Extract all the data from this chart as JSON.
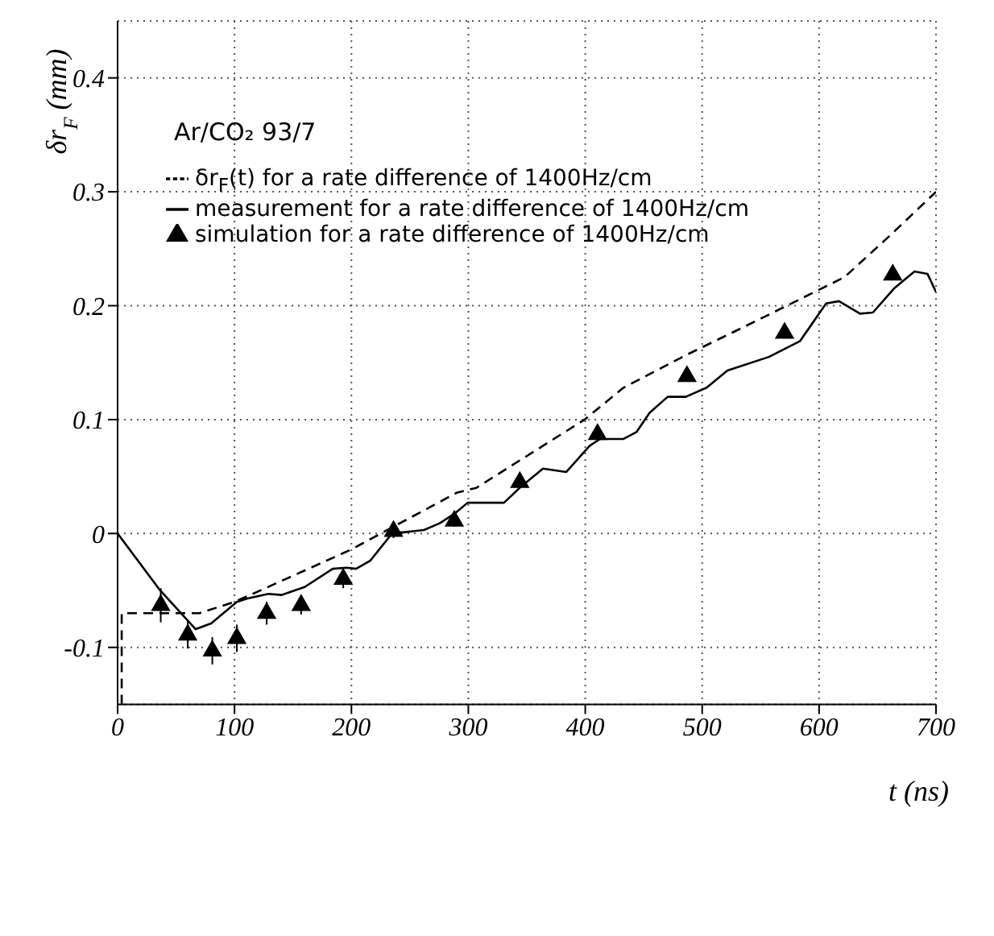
{
  "chart_data": {
    "type": "line",
    "xlabel": "t (ns)",
    "ylabel": "δr$_{F}$ (mm)",
    "xlim": [
      0,
      700
    ],
    "ylim": [
      -0.15,
      0.45
    ],
    "xticks": [
      0,
      100,
      200,
      300,
      400,
      500,
      600,
      700
    ],
    "yticks": [
      -0.1,
      0,
      0.1,
      0.2,
      0.3,
      0.4
    ],
    "grid": true,
    "legend": "top left",
    "annotations": [
      "Ar/CO₂ 93/7"
    ],
    "series": [
      {
        "name": "δr$_{F}$(t) for a rate difference of 1400Hz/cm",
        "line_style": "dashed",
        "marker": "none",
        "color": "#000000",
        "x": [
          3.5,
          3.5,
          70,
          100,
          115.6,
          200,
          236,
          290.5,
          306.7,
          399.4,
          432.7,
          487,
          539,
          621.6,
          659,
          700
        ],
        "values": [
          -0.15,
          -0.07,
          -0.07,
          -0.06,
          -0.053,
          -0.014,
          0.006,
          0.036,
          0.04,
          0.1,
          0.128,
          0.157,
          0.183,
          0.225,
          0.26,
          0.3
        ]
      },
      {
        "name": "measurement for a rate difference of 1400Hz/cm",
        "line_style": "solid",
        "marker": "none",
        "color": "#000000",
        "x": [
          0,
          35.6,
          66.7,
          80,
          102,
          111,
          129,
          140,
          160,
          184,
          196,
          204,
          216,
          235.5,
          244,
          262,
          275.5,
          289,
          299.4,
          330.5,
          343.8,
          363.8,
          383.8,
          403.8,
          412.7,
          432.7,
          443.8,
          455,
          470.5,
          486,
          503.8,
          521.6,
          557,
          583.8,
          606,
          617,
          635,
          646,
          664,
          681.6,
          692.7,
          700
        ],
        "values": [
          0,
          -0.049,
          -0.084,
          -0.079,
          -0.06,
          -0.057,
          -0.053,
          -0.054,
          -0.047,
          -0.031,
          -0.03,
          -0.031,
          -0.024,
          0.001,
          0.001,
          0.003,
          0.009,
          0.018,
          0.027,
          0.027,
          0.04,
          0.057,
          0.054,
          0.077,
          0.083,
          0.083,
          0.089,
          0.106,
          0.12,
          0.12,
          0.128,
          0.143,
          0.155,
          0.169,
          0.202,
          0.204,
          0.193,
          0.194,
          0.215,
          0.23,
          0.228,
          0.212
        ]
      },
      {
        "name": "simulation for a rate difference of 1400Hz/cm",
        "type": "scatter",
        "marker": "triangle",
        "color": "#000000",
        "x": [
          36.9,
          60,
          81,
          102,
          127.5,
          157,
          193,
          236,
          288,
          344,
          410.5,
          487,
          570.5,
          663
        ],
        "values": [
          -0.063,
          -0.089,
          -0.103,
          -0.092,
          -0.07,
          -0.063,
          -0.04,
          0.002,
          0.011,
          0.045,
          0.087,
          0.138,
          0.176,
          0.227
        ],
        "errors": [
          0.015,
          0.012,
          0.012,
          0.012,
          0.01,
          0.008,
          0.008,
          0.006,
          0.005,
          null,
          null,
          null,
          null,
          null
        ]
      }
    ]
  }
}
